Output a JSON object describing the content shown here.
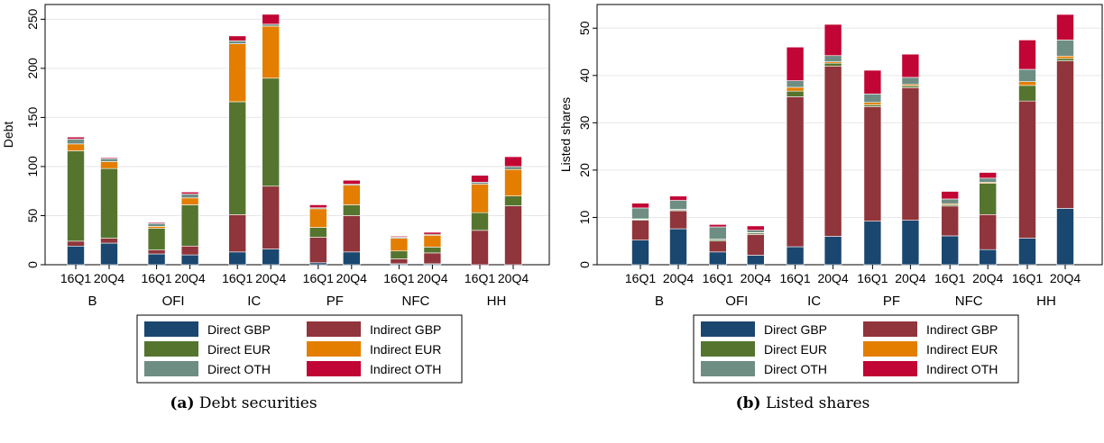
{
  "colors": {
    "Direct GBP": "#1a476f",
    "Indirect GBP": "#90353b",
    "Direct EUR": "#55752f",
    "Indirect EUR": "#e37e00",
    "Direct OTH": "#6e8e84",
    "Indirect OTH": "#c10534"
  },
  "legend_labels": {
    "direct_gbp": "Direct GBP",
    "indirect_gbp": "Indirect GBP",
    "direct_eur": "Direct EUR",
    "indirect_eur": "Indirect EUR",
    "direct_oth": "Direct OTH",
    "indirect_oth": "Indirect OTH"
  },
  "captions": {
    "a_tag": "(a)",
    "a_text": "Debt securities",
    "b_tag": "(b)",
    "b_text": "Listed shares"
  },
  "chart_data": [
    {
      "type": "bar",
      "stacked": true,
      "title": "",
      "ylabel": "Debt",
      "ylim": [
        0,
        265
      ],
      "yticks": [
        0,
        50,
        100,
        150,
        200,
        250
      ],
      "groups": [
        "B",
        "OFI",
        "IC",
        "PF",
        "NFC",
        "HH"
      ],
      "periods": [
        "16Q1",
        "20Q4"
      ],
      "legend_position": "bottom",
      "series_order": [
        "Direct GBP",
        "Indirect GBP",
        "Direct EUR",
        "Indirect EUR",
        "Direct OTH",
        "Indirect OTH"
      ],
      "series": [
        {
          "name": "Direct GBP",
          "values": [
            19,
            22,
            11,
            10,
            13,
            16,
            2,
            13,
            1,
            1,
            0,
            0
          ]
        },
        {
          "name": "Indirect GBP",
          "values": [
            5,
            5,
            4,
            9,
            38,
            64,
            26,
            37,
            5,
            11,
            35,
            60
          ]
        },
        {
          "name": "Direct EUR",
          "values": [
            92,
            71,
            22,
            42,
            115,
            110,
            10,
            11,
            8,
            6,
            18,
            10
          ]
        },
        {
          "name": "Indirect EUR",
          "values": [
            7,
            7,
            2,
            7,
            59,
            53,
            19,
            20,
            13,
            12,
            29,
            27
          ]
        },
        {
          "name": "Direct OTH",
          "values": [
            5,
            3,
            3,
            4,
            3,
            2,
            1,
            1,
            1,
            1,
            2,
            3
          ]
        },
        {
          "name": "Indirect OTH",
          "values": [
            2,
            1,
            1,
            2,
            5,
            10,
            3,
            4,
            1,
            2,
            7,
            10
          ]
        }
      ]
    },
    {
      "type": "bar",
      "stacked": true,
      "title": "",
      "ylabel": "Listed shares",
      "ylim": [
        0,
        55
      ],
      "yticks": [
        0,
        10,
        20,
        30,
        40,
        50
      ],
      "groups": [
        "B",
        "OFI",
        "IC",
        "PF",
        "NFC",
        "HH"
      ],
      "periods": [
        "16Q1",
        "20Q4"
      ],
      "legend_position": "bottom",
      "series_order": [
        "Direct GBP",
        "Indirect GBP",
        "Direct EUR",
        "Indirect EUR",
        "Direct OTH",
        "Indirect OTH"
      ],
      "series": [
        {
          "name": "Direct GBP",
          "values": [
            5.2,
            7.6,
            2.7,
            2.0,
            3.8,
            6.0,
            9.2,
            9.4,
            6.1,
            3.2,
            5.6,
            11.9
          ]
        },
        {
          "name": "Indirect GBP",
          "values": [
            4.2,
            3.8,
            2.3,
            4.4,
            31.7,
            36.0,
            24.2,
            28.0,
            6.3,
            7.4,
            29.0,
            31.2
          ]
        },
        {
          "name": "Direct EUR",
          "values": [
            0.2,
            0.2,
            0.3,
            0.3,
            1.2,
            0.6,
            0.4,
            0.4,
            0.3,
            6.6,
            3.3,
            0.5
          ]
        },
        {
          "name": "Indirect EUR",
          "values": [
            0.1,
            0.1,
            0.1,
            0.1,
            0.8,
            0.3,
            0.5,
            0.3,
            0.2,
            0.2,
            0.8,
            0.5
          ]
        },
        {
          "name": "Direct OTH",
          "values": [
            2.3,
            1.9,
            2.6,
            0.5,
            1.4,
            1.3,
            1.8,
            1.5,
            1.0,
            0.9,
            2.6,
            3.4
          ]
        },
        {
          "name": "Indirect OTH",
          "values": [
            1.0,
            0.9,
            0.5,
            0.9,
            7.1,
            6.6,
            5.0,
            4.9,
            1.6,
            1.2,
            6.2,
            5.4
          ]
        }
      ]
    }
  ]
}
